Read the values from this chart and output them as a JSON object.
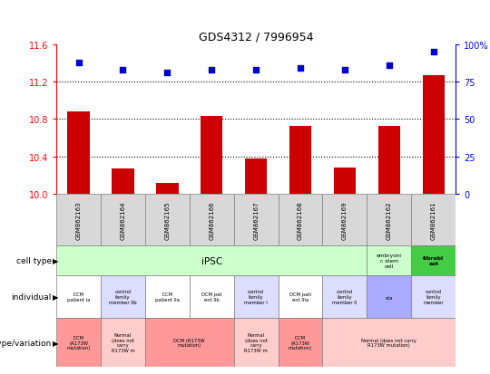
{
  "title": "GDS4312 / 7996954",
  "samples": [
    "GSM862163",
    "GSM862164",
    "GSM862165",
    "GSM862166",
    "GSM862167",
    "GSM862168",
    "GSM862169",
    "GSM862162",
    "GSM862161"
  ],
  "bar_values": [
    10.88,
    10.27,
    10.12,
    10.83,
    10.38,
    10.73,
    10.28,
    10.73,
    11.27
  ],
  "scatter_values": [
    88,
    83,
    81,
    83,
    83,
    84,
    83,
    86,
    95
  ],
  "ylim_left": [
    10,
    11.6
  ],
  "ylim_right": [
    0,
    100
  ],
  "yticks_left": [
    10,
    10.4,
    10.8,
    11.2,
    11.6
  ],
  "yticks_right": [
    0,
    25,
    50,
    75,
    100
  ],
  "ytick_right_labels": [
    "0",
    "25",
    "50",
    "75",
    "100%"
  ],
  "bar_color": "#cc0000",
  "scatter_color": "#0000cc",
  "individual_row": [
    {
      "text": "DCM\npatient Ia",
      "color": "#ffffff"
    },
    {
      "text": "control\nfamily\nmember IIb",
      "color": "#ddddff"
    },
    {
      "text": "DCM\npatient IIa",
      "color": "#ffffff"
    },
    {
      "text": "DCM pat\nent IIb",
      "color": "#ffffff"
    },
    {
      "text": "control\nfamily\nmember I",
      "color": "#ddddff"
    },
    {
      "text": "DCM pati\nent IIIa",
      "color": "#ffffff"
    },
    {
      "text": "control\nfamily\nmember II",
      "color": "#ddddff"
    },
    {
      "text": "n/a",
      "color": "#aaaaff"
    },
    {
      "text": "control\nfamily\nmember",
      "color": "#ddddff"
    }
  ],
  "genotype_spans": [
    1,
    1,
    2,
    1,
    1,
    3
  ],
  "genotype_texts": [
    "DCM\n(R173W\nmutation)",
    "Normal\n(does not\ncarry\nR173W m",
    "DCM (R173W\nmutation)",
    "Normal\n(does not\ncarry\nR173W m",
    "DCM\n(R173W\nmutation)",
    "Normal (does not carry\nR173W mutation)"
  ],
  "genotype_colors": [
    "#ff9999",
    "#ffcccc",
    "#ff9999",
    "#ffcccc",
    "#ff9999",
    "#ffcccc"
  ]
}
